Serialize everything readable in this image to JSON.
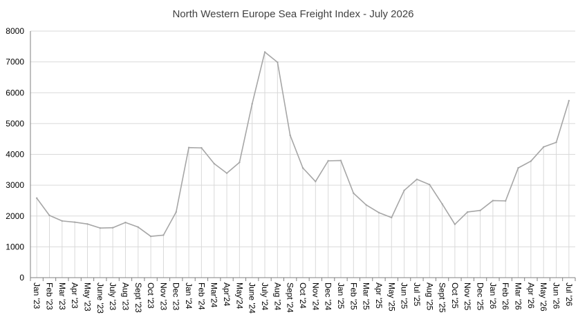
{
  "chart_data": {
    "type": "line",
    "title": "North Western Europe Sea Freight Index - July 2026",
    "xlabel": "",
    "ylabel": "",
    "ylim": [
      0,
      8000
    ],
    "yticks": [
      "0",
      "1000",
      "2000",
      "3000",
      "4000",
      "5000",
      "6000",
      "7000",
      "8000"
    ],
    "grid": "horizontal",
    "drop_lines": true,
    "legend": "none",
    "categories": [
      "Jan '23",
      "Feb '23",
      "Mar '23",
      "Apr '23",
      "May '23",
      "June '23",
      "July '23",
      "Aug '23",
      "Sept '23",
      "Oct '23",
      "Nov '23",
      "Dec '23",
      "Jan '24",
      "Feb '24",
      "Mar'24",
      "Apr'24",
      "May'24",
      "June '24",
      "July '24",
      "Aug '24",
      "Sept '24",
      "Oct '24",
      "Nov '24",
      "Dec '24",
      "Jan '25",
      "Feb '25",
      "Mar '25",
      "Apr '25",
      "May '25",
      "Jun '25",
      "Jul '25",
      "Aug '25",
      "Sept '25",
      "Oct '25",
      "Nov '25",
      "Dec '25",
      "Jan '26",
      "Feb '26",
      "Mar '26",
      "Apr '26",
      "May '26",
      "Jun '26",
      "Jul '26"
    ],
    "series": [
      {
        "values": [
          2580,
          2020,
          1840,
          1800,
          1740,
          1610,
          1620,
          1790,
          1640,
          1340,
          1380,
          2130,
          4220,
          4210,
          3700,
          3390,
          3740,
          5640,
          7320,
          6990,
          4620,
          3560,
          3120,
          3790,
          3800,
          2740,
          2360,
          2110,
          1950,
          2830,
          3190,
          3020,
          2390,
          1730,
          2130,
          2180,
          2500,
          2490,
          3560,
          3780,
          4240,
          4390,
          5740
        ],
        "color": "#a6a6a6"
      }
    ],
    "colors": {
      "line": "#a6a6a6",
      "grid": "#d9d9d9",
      "axis": "#7f7f7f",
      "drop": "#d9d9d9"
    }
  }
}
